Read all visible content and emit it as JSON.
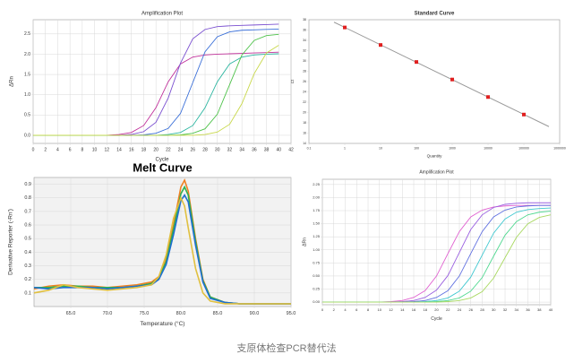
{
  "chart_data": [
    {
      "type": "line",
      "title": "Amplification Plot",
      "x_label": "Cycle",
      "y_label": "ΔRn",
      "x": [
        0,
        2,
        4,
        6,
        8,
        10,
        12,
        14,
        16,
        18,
        20,
        22,
        24,
        26,
        28,
        30,
        32,
        34,
        36,
        38,
        40
      ],
      "xlim": [
        0,
        42
      ],
      "xticks": [
        0,
        2,
        4,
        6,
        8,
        10,
        12,
        14,
        16,
        18,
        20,
        22,
        24,
        26,
        28,
        30,
        32,
        34,
        36,
        38,
        40,
        42
      ],
      "ylim": [
        -0.2,
        2.85
      ],
      "yticks": [
        {
          "value": 0,
          "label": "0.0"
        },
        0.5,
        {
          "value": 1,
          "label": "1.0"
        },
        1.5,
        {
          "value": 2,
          "label": "2.0"
        },
        2.5
      ],
      "grid": true,
      "series": [
        {
          "color": "#c0309a",
          "values": [
            0,
            0,
            0,
            0,
            0,
            0,
            0,
            0.02,
            0.07,
            0.24,
            0.68,
            1.32,
            1.76,
            1.93,
            1.98,
            2.0,
            2.01,
            2.02,
            2.03,
            2.04,
            2.05
          ]
        },
        {
          "color": "#7a4fd0",
          "values": [
            0,
            0,
            0,
            0,
            0,
            0,
            0,
            0,
            0.02,
            0.09,
            0.32,
            0.92,
            1.78,
            2.38,
            2.61,
            2.68,
            2.7,
            2.71,
            2.72,
            2.73,
            2.74
          ]
        },
        {
          "color": "#3a6fd8",
          "values": [
            0,
            0,
            0,
            0,
            0,
            0,
            0,
            0,
            0,
            0.01,
            0.05,
            0.17,
            0.54,
            1.3,
            2.06,
            2.43,
            2.55,
            2.59,
            2.6,
            2.61,
            2.62
          ]
        },
        {
          "color": "#2bb5a0",
          "values": [
            0,
            0,
            0,
            0,
            0,
            0,
            0,
            0,
            0,
            0,
            0,
            0.02,
            0.07,
            0.24,
            0.68,
            1.32,
            1.76,
            1.93,
            1.98,
            2.0,
            2.01
          ]
        },
        {
          "color": "#4ec24a",
          "values": [
            0,
            0,
            0,
            0,
            0,
            0,
            0,
            0,
            0,
            0,
            0,
            0,
            0.01,
            0.05,
            0.16,
            0.52,
            1.25,
            1.98,
            2.34,
            2.46,
            2.49
          ]
        },
        {
          "color": "#c8d84a",
          "values": [
            0,
            0,
            0,
            0,
            0,
            0,
            0,
            0,
            0,
            0,
            0,
            0,
            0,
            0,
            0.02,
            0.08,
            0.27,
            0.78,
            1.52,
            2.03,
            2.22
          ]
        }
      ]
    },
    {
      "type": "scatter",
      "title": "Standard Curve",
      "x_label": "Quantity",
      "y_label": "Ct",
      "log_x": true,
      "x": [
        1,
        10,
        100,
        1000,
        10000,
        100000
      ],
      "values": [
        36.5,
        33.1,
        29.8,
        26.4,
        23.0,
        19.6
      ],
      "color": "#e02020",
      "fit_color": "#999999",
      "xlim": [
        0.1,
        1000000
      ],
      "xticks": [
        0.1,
        1,
        10,
        100,
        1000,
        10000,
        100000,
        1000000
      ],
      "ylim": [
        14,
        38
      ],
      "yticks": [
        14,
        16,
        18,
        20,
        22,
        24,
        26,
        28,
        30,
        32,
        34,
        36,
        38
      ]
    },
    {
      "type": "line",
      "title": "Melt Curve",
      "x_label": "Temperature (°C)",
      "y_label": "Derivative Reporter (-Rn')",
      "x": [
        60,
        62,
        64,
        66,
        68,
        70,
        72,
        74,
        76,
        77,
        78,
        79,
        80,
        80.5,
        81,
        82,
        83,
        84,
        86,
        88,
        90,
        92,
        95
      ],
      "xlim": [
        60,
        95
      ],
      "xticks": [
        {
          "value": 65,
          "label": "65.0"
        },
        {
          "value": 70,
          "label": "70.0"
        },
        {
          "value": 75,
          "label": "75.0"
        },
        {
          "value": 80,
          "label": "80.0"
        },
        {
          "value": 85,
          "label": "85.0"
        },
        {
          "value": 90,
          "label": "90.0"
        },
        {
          "value": 95,
          "label": "95.0"
        }
      ],
      "ylim": [
        0,
        0.95
      ],
      "yticks": [
        0.1,
        0.2,
        0.3,
        0.4,
        0.5,
        0.6,
        0.7,
        0.8,
        0.9
      ],
      "grid": true,
      "plot_background": "#f2f2f2",
      "series": [
        {
          "color": "#f08020",
          "values": [
            0.13,
            0.15,
            0.16,
            0.15,
            0.15,
            0.14,
            0.15,
            0.16,
            0.18,
            0.22,
            0.35,
            0.6,
            0.88,
            0.93,
            0.85,
            0.5,
            0.2,
            0.07,
            0.03,
            0.02,
            0.02,
            0.02,
            0.02
          ]
        },
        {
          "color": "#30b050",
          "values": [
            0.14,
            0.14,
            0.15,
            0.15,
            0.14,
            0.14,
            0.14,
            0.15,
            0.17,
            0.21,
            0.33,
            0.57,
            0.83,
            0.88,
            0.82,
            0.48,
            0.19,
            0.07,
            0.03,
            0.02,
            0.02,
            0.02,
            0.02
          ]
        },
        {
          "color": "#1f6fd0",
          "values": [
            0.14,
            0.13,
            0.14,
            0.14,
            0.14,
            0.13,
            0.14,
            0.15,
            0.16,
            0.2,
            0.31,
            0.53,
            0.78,
            0.82,
            0.77,
            0.45,
            0.18,
            0.06,
            0.03,
            0.02,
            0.02,
            0.02,
            0.02
          ]
        },
        {
          "color": "#e0c040",
          "values": [
            0.1,
            0.12,
            0.16,
            0.14,
            0.13,
            0.12,
            0.13,
            0.14,
            0.16,
            0.22,
            0.38,
            0.65,
            0.8,
            0.74,
            0.58,
            0.28,
            0.1,
            0.04,
            0.02,
            0.02,
            0.02,
            0.02,
            0.02
          ]
        }
      ]
    },
    {
      "type": "line",
      "title": "Amplification Plot",
      "x_label": "Cycle",
      "y_label": "ΔRn",
      "x": [
        0,
        2,
        4,
        6,
        8,
        10,
        12,
        14,
        16,
        18,
        20,
        22,
        24,
        26,
        28,
        30,
        32,
        34,
        36,
        38,
        40
      ],
      "xlim": [
        0,
        40
      ],
      "xticks": [
        0,
        2,
        4,
        6,
        8,
        10,
        12,
        14,
        16,
        18,
        20,
        22,
        24,
        26,
        28,
        30,
        32,
        34,
        36,
        38,
        40
      ],
      "ylim": [
        -0.05,
        2.35
      ],
      "yticks": [
        {
          "value": 0,
          "label": "0.00"
        },
        0.25,
        {
          "value": 0.5,
          "label": "0.50"
        },
        0.75,
        {
          "value": 1,
          "label": "1.00"
        },
        1.25,
        {
          "value": 1.5,
          "label": "1.50"
        },
        1.75,
        {
          "value": 2,
          "label": "2.00"
        },
        2.25
      ],
      "grid": true,
      "series": [
        {
          "color": "#e060d0",
          "values": [
            0,
            0,
            0,
            0,
            0,
            0,
            0.01,
            0.03,
            0.09,
            0.22,
            0.5,
            0.93,
            1.35,
            1.63,
            1.76,
            1.82,
            1.84,
            1.85,
            1.85,
            1.85,
            1.85
          ]
        },
        {
          "color": "#9a60e0",
          "values": [
            0,
            0,
            0,
            0,
            0,
            0,
            0,
            0.01,
            0.03,
            0.09,
            0.23,
            0.51,
            0.95,
            1.39,
            1.67,
            1.81,
            1.87,
            1.89,
            1.9,
            1.9,
            1.9
          ]
        },
        {
          "color": "#6070e0",
          "values": [
            0,
            0,
            0,
            0,
            0,
            0,
            0,
            0,
            0.01,
            0.03,
            0.09,
            0.22,
            0.5,
            0.93,
            1.35,
            1.63,
            1.76,
            1.82,
            1.84,
            1.85,
            1.85
          ]
        },
        {
          "color": "#40c8d0",
          "values": [
            0,
            0,
            0,
            0,
            0,
            0,
            0,
            0,
            0,
            0.01,
            0.03,
            0.08,
            0.21,
            0.48,
            0.9,
            1.32,
            1.59,
            1.72,
            1.77,
            1.79,
            1.8
          ]
        },
        {
          "color": "#50d890",
          "values": [
            0,
            0,
            0,
            0,
            0,
            0,
            0,
            0,
            0,
            0,
            0.01,
            0.03,
            0.08,
            0.21,
            0.47,
            0.88,
            1.28,
            1.54,
            1.67,
            1.72,
            1.74
          ]
        },
        {
          "color": "#a8d860",
          "values": [
            0,
            0,
            0,
            0,
            0,
            0,
            0,
            0,
            0,
            0,
            0,
            0.01,
            0.03,
            0.08,
            0.2,
            0.46,
            0.85,
            1.24,
            1.5,
            1.62,
            1.67
          ]
        }
      ]
    }
  ],
  "caption": "支原体检查PCR替代法"
}
